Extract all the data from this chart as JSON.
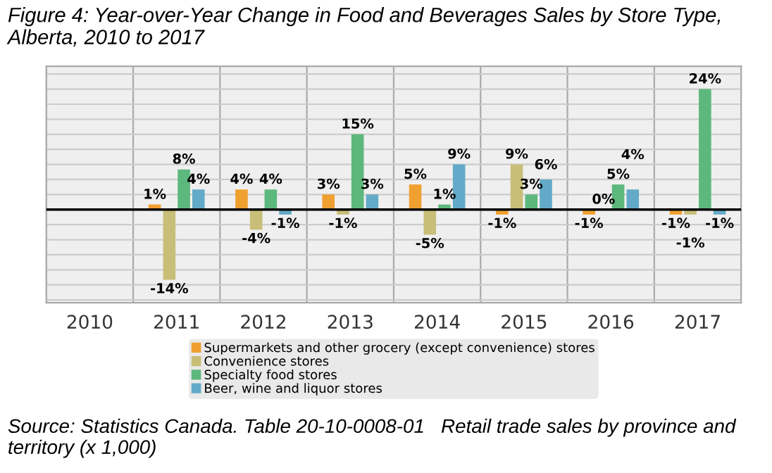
{
  "chart_data": {
    "type": "bar",
    "title": "Figure 4: Year-over-Year Change in Food and Beverages Sales by Store Type, Alberta, 2010 to 2017",
    "categories": [
      "2010",
      "2011",
      "2012",
      "2013",
      "2014",
      "2015",
      "2016",
      "2017"
    ],
    "series": [
      {
        "name": "Supermarkets and other grocery (except convenience) stores",
        "color": "#f0a030",
        "values": [
          null,
          1,
          4,
          3,
          5,
          -1,
          -1,
          -1
        ],
        "value_labels": [
          null,
          "1%",
          "4%",
          "3%",
          "5%",
          "-1%",
          "-1%",
          "-1%"
        ]
      },
      {
        "name": "Convenience stores",
        "color": "#c8be78",
        "values": [
          null,
          -14,
          -4,
          -1,
          -5,
          9,
          0,
          -1
        ],
        "value_labels": [
          null,
          "-14%",
          "-4%",
          "-1%",
          "-5%",
          "9%",
          "0%",
          "-1%"
        ]
      },
      {
        "name": "Specialty food stores",
        "color": "#5cb87c",
        "values": [
          null,
          8,
          4,
          15,
          1,
          3,
          5,
          24
        ],
        "value_labels": [
          null,
          "8%",
          "4%",
          "15%",
          "1%",
          "3%",
          "5%",
          "24%"
        ]
      },
      {
        "name": "Beer, wine and liquor stores",
        "color": "#62aac8",
        "values": [
          null,
          4,
          -1,
          3,
          9,
          6,
          4,
          -1
        ],
        "value_labels": [
          null,
          "4%",
          "-1%",
          "3%",
          "9%",
          "6%",
          "4%",
          "-1%"
        ]
      }
    ],
    "grid": true,
    "legend": "bottom",
    "tick_labels": "x",
    "annotations": [
      "Source: Statistics Canada. Table 20-10-0008-01   Retail trade sales by province and territory (x 1,000)"
    ]
  }
}
